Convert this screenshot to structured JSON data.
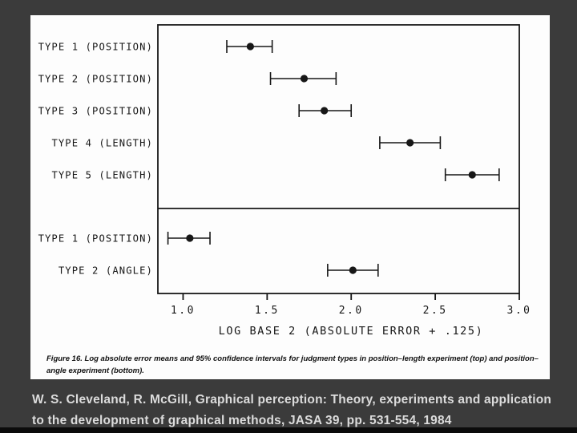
{
  "slide": {
    "background_color": "#3b3b3b",
    "bottom_bar_color": "#0b0b0b",
    "panel_color": "#fdfdfd",
    "ink_color": "#171717"
  },
  "figure": {
    "caption_line1": "Figure 16. Log absolute error means and 95% confidence intervals for judgment types in position–length experiment (top) and position–",
    "caption_line2": "angle experiment (bottom)."
  },
  "citation": {
    "line1": "W. S. Cleveland, R. McGill, Graphical perception: Theory, experiments and application",
    "line2": "to the development of graphical methods, JASA 39, pp. 531-554, 1984"
  },
  "chart_data": {
    "type": "scatter",
    "subtype": "dot-plot-with-95pct-confidence-intervals",
    "title": "",
    "xlabel": "LOG BASE 2 (ABSOLUTE ERROR + .125)",
    "ylabel": "",
    "xlim": [
      0.85,
      3.0
    ],
    "xticks": [
      1.0,
      1.5,
      2.0,
      2.5,
      3.0
    ],
    "grid": false,
    "legend": "none",
    "panels": [
      {
        "name": "position-length experiment (top)",
        "rows": [
          {
            "label": "TYPE 1 (POSITION)",
            "mean": 1.4,
            "lo": 1.26,
            "hi": 1.53
          },
          {
            "label": "TYPE 2 (POSITION)",
            "mean": 1.72,
            "lo": 1.52,
            "hi": 1.91
          },
          {
            "label": "TYPE 3 (POSITION)",
            "mean": 1.84,
            "lo": 1.69,
            "hi": 2.0
          },
          {
            "label": "TYPE 4 (LENGTH)",
            "mean": 2.35,
            "lo": 2.17,
            "hi": 2.53
          },
          {
            "label": "TYPE 5 (LENGTH)",
            "mean": 2.72,
            "lo": 2.56,
            "hi": 2.88
          }
        ]
      },
      {
        "name": "position-angle experiment (bottom)",
        "rows": [
          {
            "label": "TYPE 1 (POSITION)",
            "mean": 1.04,
            "lo": 0.91,
            "hi": 1.16
          },
          {
            "label": "TYPE 2 (ANGLE)",
            "mean": 2.01,
            "lo": 1.86,
            "hi": 2.16
          }
        ]
      }
    ]
  }
}
